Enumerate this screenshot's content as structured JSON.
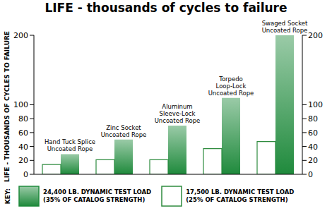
{
  "chart_data": {
    "type": "bar",
    "title": "LIFE - thousands of cycles to failure",
    "y_label": "LIFE - THOUSANDS OF CYCLES TO FAILURE",
    "categories": [
      "Hand Tuck Splice\nUncoated Rope",
      "Zinc Socket\nUncoated Rope",
      "Aluminum\nSleeve-Lock\nUncoated Rope",
      "Torpedo\nLoop-Lock\nUncoated Rope",
      "Swaged Socket\nUncoated Rope"
    ],
    "series": [
      {
        "name": "24,400 LB. DYNAMIC TEST LOAD\n(35% OF CATALOG STRENGTH)",
        "color": "#1f8a3c",
        "values": [
          29,
          50,
          70,
          110,
          200
        ]
      },
      {
        "name": "17,500 LB. DYNAMIC TEST LOAD\n(25% OF CATALOG STRENGTH)",
        "color": "#ffffff",
        "values": [
          14,
          21,
          21,
          37,
          47
        ]
      }
    ],
    "ylim": [
      0,
      200
    ],
    "yticks": [
      0,
      20,
      40,
      60,
      80,
      100,
      200
    ],
    "legend": "bottom",
    "legend_title": "KEY:",
    "grid": false
  }
}
